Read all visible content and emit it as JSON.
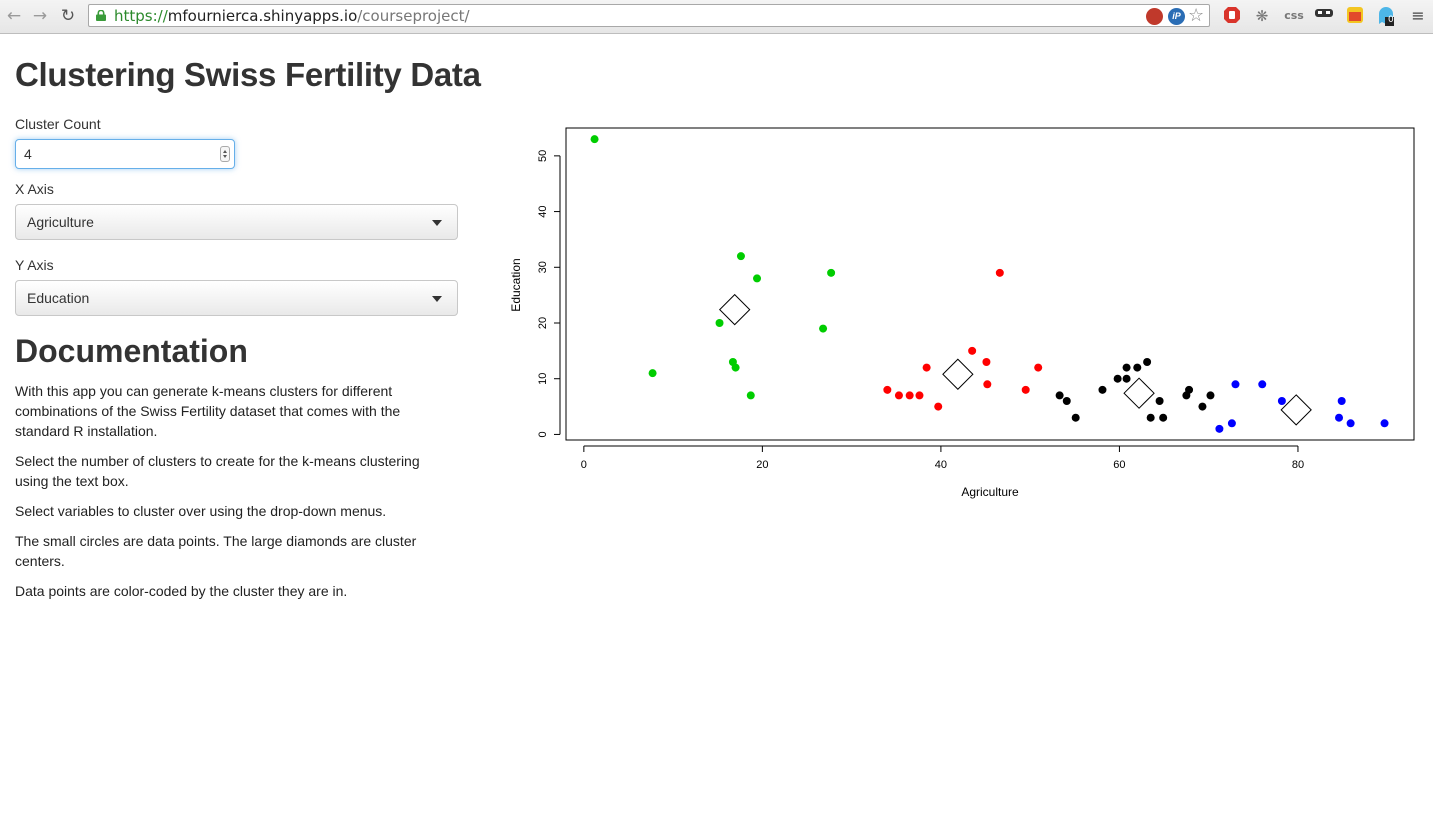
{
  "browser": {
    "url": {
      "scheme": "https://",
      "host": "mfournierca.shinyapps.io",
      "path": "/courseproject/"
    },
    "extensions": [
      "block-icon",
      "ip-icon",
      "star-icon",
      "stop-icon",
      "bug-icon",
      "css",
      "mask-icon",
      "puzzle-icon",
      "ghost-icon",
      "menu-icon"
    ],
    "ghost_badge": "0",
    "css_label": "css"
  },
  "page": {
    "title": "Clustering Swiss Fertility Data",
    "cluster_count": {
      "label": "Cluster Count",
      "value": "4"
    },
    "x_axis": {
      "label": "X Axis",
      "selected": "Agriculture"
    },
    "y_axis": {
      "label": "Y Axis",
      "selected": "Education"
    },
    "documentation": {
      "title": "Documentation",
      "paragraphs": [
        "With this app you can generate k-means clusters for different combinations of the Swiss Fertility dataset that comes with the standard R installation.",
        "Select the number of clusters to create for the k-means clustering using the text box.",
        "Select variables to cluster over using the drop-down menus.",
        "The small circles are data points. The large diamonds are cluster centers.",
        "Data points are color-coded by the cluster they are in."
      ]
    }
  },
  "chart_data": {
    "type": "scatter",
    "xlabel": "Agriculture",
    "ylabel": "Education",
    "xlim": [
      -2,
      93
    ],
    "ylim": [
      -1,
      55
    ],
    "xticks": [
      0,
      20,
      40,
      60,
      80
    ],
    "yticks": [
      0,
      10,
      20,
      30,
      40,
      50
    ],
    "grid": false,
    "series": [
      {
        "color": "#00cd00",
        "points": [
          [
            1.2,
            53
          ],
          [
            7.7,
            11
          ],
          [
            15.2,
            20
          ],
          [
            16.7,
            13
          ],
          [
            17,
            12
          ],
          [
            17.6,
            32
          ],
          [
            18.7,
            7
          ],
          [
            19.4,
            28
          ],
          [
            26.8,
            19
          ],
          [
            27.7,
            29
          ]
        ]
      },
      {
        "color": "#ff0000",
        "points": [
          [
            34,
            8
          ],
          [
            35.3,
            7
          ],
          [
            36.5,
            7
          ],
          [
            37.6,
            7
          ],
          [
            38.4,
            12
          ],
          [
            39.7,
            5
          ],
          [
            43.5,
            15
          ],
          [
            45.1,
            13
          ],
          [
            45.2,
            9
          ],
          [
            46.6,
            29
          ],
          [
            49.5,
            8
          ],
          [
            50.9,
            12
          ]
        ]
      },
      {
        "color": "#000000",
        "points": [
          [
            53.3,
            7
          ],
          [
            54.1,
            6
          ],
          [
            55.1,
            3
          ],
          [
            58.1,
            8
          ],
          [
            59.8,
            10
          ],
          [
            60.8,
            10
          ],
          [
            60.8,
            12
          ],
          [
            62,
            12
          ],
          [
            63.1,
            13
          ],
          [
            63.5,
            3
          ],
          [
            64.5,
            6
          ],
          [
            64.9,
            3
          ],
          [
            67.5,
            7
          ],
          [
            67.8,
            8
          ],
          [
            69.3,
            5
          ],
          [
            70.2,
            7
          ]
        ]
      },
      {
        "color": "#0000ff",
        "points": [
          [
            71.2,
            1
          ],
          [
            72.6,
            2
          ],
          [
            73,
            9
          ],
          [
            76,
            9
          ],
          [
            78.2,
            6
          ],
          [
            84.6,
            3
          ],
          [
            84.9,
            6
          ],
          [
            85.9,
            2
          ],
          [
            89.7,
            2
          ]
        ]
      }
    ],
    "centers": [
      [
        16.9,
        22.4
      ],
      [
        41.9,
        10.8
      ],
      [
        62.2,
        7.4
      ],
      [
        79.8,
        4.4
      ]
    ]
  }
}
